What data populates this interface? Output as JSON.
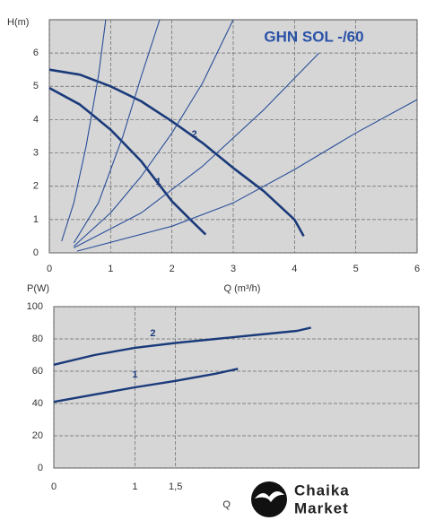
{
  "chart_data": [
    {
      "type": "line",
      "title": "GHN SOL -/60",
      "y_label": "H(m)",
      "x_label": "Q (m³/h)",
      "xlim": [
        0,
        6
      ],
      "xticks": [
        0,
        1,
        2,
        3,
        4,
        5,
        6
      ],
      "ylim": [
        0,
        7
      ],
      "yticks": [
        0,
        1,
        2,
        3,
        4,
        5,
        6
      ],
      "grid": true,
      "series": [
        {
          "name": "1",
          "color": "#1a3a7a",
          "x": [
            0,
            0.5,
            1,
            1.5,
            2,
            2.3,
            2.55
          ],
          "values": [
            4.95,
            4.45,
            3.7,
            2.75,
            1.55,
            1,
            0.55
          ]
        },
        {
          "name": "2",
          "color": "#1a3a7a",
          "x": [
            0,
            0.5,
            1,
            1.5,
            2,
            2.5,
            3,
            3.5,
            4,
            4.15
          ],
          "values": [
            5.5,
            5.35,
            5.0,
            4.55,
            3.95,
            3.3,
            2.55,
            1.85,
            1.0,
            0.5
          ]
        },
        {
          "color": "#2a4f9a",
          "x": [
            0.2,
            0.4,
            0.6,
            0.8,
            0.92
          ],
          "values": [
            0.35,
            1.5,
            3.2,
            5.3,
            7
          ]
        },
        {
          "color": "#2a4f9a",
          "x": [
            0.4,
            0.8,
            1.2,
            1.5,
            1.8
          ],
          "values": [
            0.3,
            1.5,
            3.5,
            5.3,
            7
          ]
        },
        {
          "color": "#2a4f9a",
          "x": [
            0.4,
            1,
            1.5,
            2,
            2.5,
            3
          ],
          "values": [
            0.2,
            1.2,
            2.3,
            3.6,
            5.1,
            7
          ]
        },
        {
          "color": "#2a4f9a",
          "x": [
            0.4,
            1.5,
            2.5,
            3.5,
            4.4
          ],
          "values": [
            0.15,
            1.2,
            2.6,
            4.3,
            6
          ]
        },
        {
          "color": "#2a4f9a",
          "x": [
            0.45,
            2,
            3,
            4,
            5,
            6
          ],
          "values": [
            0.05,
            0.8,
            1.5,
            2.5,
            3.6,
            4.6
          ]
        }
      ]
    },
    {
      "type": "line",
      "y_label": "P(W)",
      "x_label": "Q (",
      "xlim": [
        0,
        4.5
      ],
      "xticks": [
        0,
        1,
        {
          "value": 1.5,
          "label": "1,5"
        }
      ],
      "ylim": [
        0,
        100
      ],
      "yticks": [
        0,
        20,
        40,
        60,
        80,
        100
      ],
      "grid": true,
      "series": [
        {
          "name": "1",
          "color": "#1a3a7a",
          "x": [
            0,
            0.5,
            1,
            1.5,
            2,
            2.27
          ],
          "values": [
            41,
            45.5,
            50,
            54,
            58.5,
            61.5
          ]
        },
        {
          "name": "2",
          "color": "#1a3a7a",
          "x": [
            0,
            0.5,
            1,
            1.5,
            2,
            2.5,
            3,
            3.17
          ],
          "values": [
            64,
            70,
            74.5,
            77.5,
            80,
            82.5,
            85,
            87
          ]
        }
      ]
    }
  ],
  "watermark": {
    "line1": "Chaika",
    "line2": "Market"
  }
}
